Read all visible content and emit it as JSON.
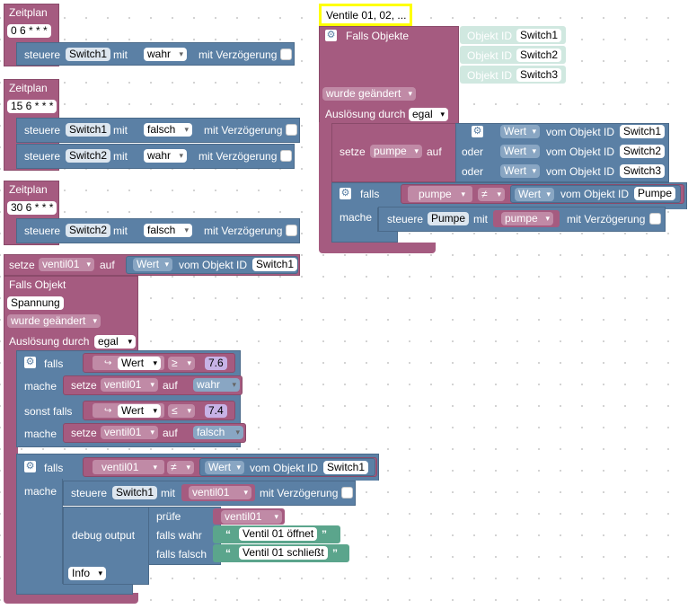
{
  "z1": {
    "title": "Zeitplan",
    "cron": "0 6 * * *",
    "steuere": "steuere",
    "dev": "Switch1",
    "mit": "mit",
    "val": "wahr",
    "delay": "mit Verzögerung"
  },
  "z2": {
    "title": "Zeitplan",
    "cron": "15 6 * * *",
    "r1": {
      "steuere": "steuere",
      "dev": "Switch1",
      "mit": "mit",
      "val": "falsch",
      "delay": "mit Verzögerung"
    },
    "r2": {
      "steuere": "steuere",
      "dev": "Switch2",
      "mit": "mit",
      "val": "wahr",
      "delay": "mit Verzögerung"
    }
  },
  "z3": {
    "title": "Zeitplan",
    "cron": "30 6 * * *",
    "steuere": "steuere",
    "dev": "Switch2",
    "mit": "mit",
    "val": "falsch",
    "delay": "mit Verzögerung"
  },
  "setze_v": {
    "setze": "setze",
    "var": "ventil01",
    "auf": "auf",
    "wert": "Wert",
    "vom": "vom Objekt ID",
    "obj": "Switch1"
  },
  "fo": {
    "title": "Falls Objekt",
    "obj": "Spannung",
    "trigger": "wurde geändert",
    "ausl": "Auslösung durch",
    "egal": "egal",
    "if1": {
      "falls": "falls",
      "wert": "Wert",
      "op": "≥",
      "num": "7.6",
      "mache": "mache",
      "setze": "setze",
      "var": "ventil01",
      "auf": "auf",
      "val": "wahr",
      "sonst": "sonst falls",
      "wert2": "Wert",
      "op2": "≤",
      "num2": "7.4",
      "mache2": "mache",
      "setze2": "setze",
      "var2": "ventil01",
      "auf2": "auf",
      "val2": "falsch"
    },
    "if2": {
      "falls": "falls",
      "var": "ventil01",
      "op": "≠",
      "wert": "Wert",
      "vom": "vom Objekt ID",
      "obj": "Switch1",
      "mache": "mache",
      "steuere": "steuere",
      "dev": "Switch1",
      "mit": "mit",
      "var2": "ventil01",
      "delay": "mit Verzögerung",
      "debug": "debug output",
      "pruefe": "prüfe",
      "var3": "ventil01",
      "fw": "falls wahr",
      "t1": "Ventil 01 öffnet",
      "ff": "falls falsch",
      "t2": "Ventil 01 schließt",
      "level": "Info",
      "quote_open": "“",
      "quote_close": "”"
    }
  },
  "right": {
    "comment": "Ventile 01, 02, ...",
    "title": "Falls Objekte",
    "objs": [
      {
        "label": "Objekt ID",
        "val": "Switch1"
      },
      {
        "label": "Objekt ID",
        "val": "Switch2"
      },
      {
        "label": "Objekt ID",
        "val": "Switch3"
      }
    ],
    "trigger": "wurde geändert",
    "ausl": "Auslösung durch",
    "egal": "egal",
    "setze": "setze",
    "var": "pumpe",
    "auf": "auf",
    "oder1": "oder",
    "oder2": "oder",
    "rows": [
      {
        "wert": "Wert",
        "vom": "vom Objekt ID",
        "obj": "Switch1"
      },
      {
        "wert": "Wert",
        "vom": "vom Objekt ID",
        "obj": "Switch2"
      },
      {
        "wert": "Wert",
        "vom": "vom Objekt ID",
        "obj": "Switch3"
      }
    ],
    "falls": "falls",
    "var2": "pumpe",
    "op": "≠",
    "wert": "Wert",
    "vom": "vom Objekt ID",
    "obj": "Pumpe",
    "mache": "mache",
    "steuere": "steuere",
    "dev": "Pumpe",
    "mit": "mit",
    "var3": "pumpe",
    "delay": "mit Verzögerung"
  },
  "colors": {
    "trigger": "#a55b80",
    "action": "#5b80a5",
    "text": "#5ba58c",
    "objid": "#d0e8e0",
    "comment": "#ffff00"
  }
}
